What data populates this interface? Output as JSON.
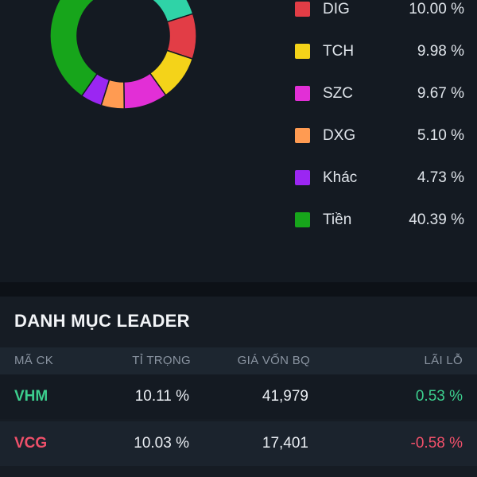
{
  "chart_data": {
    "type": "pie",
    "style": "donut",
    "slices": [
      {
        "label": "DIG",
        "value": 10.0,
        "color": "#e23d46"
      },
      {
        "label": "TCH",
        "value": 9.98,
        "color": "#f4d319"
      },
      {
        "label": "SZC",
        "value": 9.67,
        "color": "#e22fd6"
      },
      {
        "label": "DXG",
        "value": 5.1,
        "color": "#ff9b52"
      },
      {
        "label": "Khác",
        "value": 4.73,
        "color": "#9b26f2"
      },
      {
        "label": "Tiền",
        "value": 40.39,
        "color": "#17a51b"
      }
    ],
    "legend_position": "right"
  },
  "legend": [
    {
      "label": "DIG",
      "value": "10.00 %",
      "color": "#e23d46"
    },
    {
      "label": "TCH",
      "value": "9.98 %",
      "color": "#f4d319"
    },
    {
      "label": "SZC",
      "value": "9.67 %",
      "color": "#e22fd6"
    },
    {
      "label": "DXG",
      "value": "5.10 %",
      "color": "#ff9b52"
    },
    {
      "label": "Khác",
      "value": "4.73 %",
      "color": "#9b26f2"
    },
    {
      "label": "Tiền",
      "value": "40.39 %",
      "color": "#17a51b"
    }
  ],
  "leader": {
    "title": "DANH MỤC LEADER",
    "headers": {
      "ticker": "MÃ CK",
      "weight": "TỈ TRỌNG",
      "avg_price": "GIÁ VỐN BQ",
      "pnl": "LÃI LỖ"
    },
    "rows": [
      {
        "ticker": "VHM",
        "weight": "10.11 %",
        "avg_price": "41,979",
        "pnl": "0.53 %",
        "ticker_color": "#3ccf8e",
        "pnl_color": "#3ccf8e"
      },
      {
        "ticker": "VCG",
        "weight": "10.03 %",
        "avg_price": "17,401",
        "pnl": "-0.58 %",
        "ticker_color": "#f0506a",
        "pnl_color": "#f0506a"
      }
    ]
  },
  "colors": {
    "background": "#141a22",
    "row_alt": "#1b232d",
    "header_bg": "#1d2630",
    "positive": "#3ccf8e",
    "negative": "#f0506a"
  }
}
